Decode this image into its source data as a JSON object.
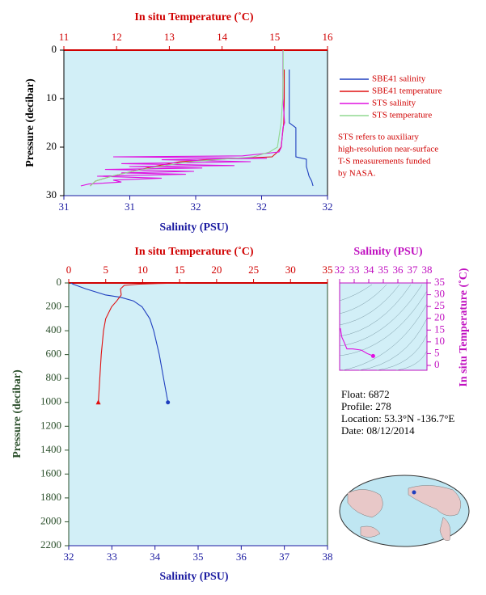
{
  "chart_data": [
    {
      "type": "line",
      "x2label": "In situ Temperature (˚C)",
      "xlabel": "Salinity (PSU)",
      "ylabel": "Pressure (decibar)",
      "xlim": [
        31,
        32
      ],
      "xticks": [
        31,
        {
          "value": 31.25,
          "label": "31"
        },
        {
          "value": 31.5,
          "label": "32"
        },
        {
          "value": 31.75,
          "label": "32"
        },
        32
      ],
      "x2lim": [
        11,
        16
      ],
      "x2ticks": [
        11,
        12,
        13,
        14,
        15,
        16
      ],
      "ylim": [
        0,
        30
      ],
      "yticks": [
        0,
        10,
        20,
        30
      ],
      "y_reversed": true,
      "series": [
        {
          "name": "SBE41 salinity",
          "color": "#1f3fbf",
          "axis": "x",
          "x": [
            31.855,
            31.855,
            31.855,
            31.88,
            31.88,
            31.88,
            31.92,
            31.92,
            31.925,
            31.93,
            31.94,
            31.945
          ],
          "y": [
            4,
            10,
            15,
            16,
            20,
            22,
            22.5,
            24,
            25,
            26,
            27,
            28
          ]
        },
        {
          "name": "SBE41 temperature",
          "color": "#e01010",
          "axis": "x2",
          "x": [
            15.18,
            15.18,
            15.17,
            15.12,
            15.05,
            14.95,
            13.9,
            13.2,
            12.7,
            12.3,
            11.9,
            11.6,
            11.5
          ],
          "y": [
            4,
            10,
            15,
            20,
            21,
            22,
            22.5,
            23,
            24,
            25,
            26,
            27,
            28
          ]
        },
        {
          "name": "STS salinity",
          "color": "#e010e0",
          "axis": "x",
          "x": [
            31.831,
            31.831,
            31.831,
            31.837,
            31.831,
            31.825,
            31.816,
            31.678,
            31.187,
            31.77,
            31.371,
            31.709,
            31.218,
            31.647,
            31.248,
            31.525,
            31.156,
            31.494,
            31.218,
            31.463,
            31.126,
            31.371,
            31.187,
            31.218,
            31.095,
            31.064
          ],
          "y": [
            0,
            5,
            10,
            15,
            16,
            20,
            21,
            21.8,
            22,
            22.3,
            22.6,
            23,
            23.4,
            23.8,
            24,
            24.3,
            24.6,
            25,
            25.3,
            25.6,
            26,
            26.4,
            26.8,
            27.2,
            27.6,
            28
          ]
        },
        {
          "name": "STS temperature",
          "color": "#90d890",
          "axis": "x2",
          "x": [
            15.16,
            15.16,
            15.15,
            15.12,
            15.05,
            14.9,
            14.6,
            13.4,
            12.8,
            12.3,
            11.9,
            11.6,
            11.5
          ],
          "y": [
            0,
            5,
            10,
            15,
            20,
            21,
            22,
            23,
            24,
            25,
            26,
            27,
            28
          ]
        }
      ],
      "annotation": [
        "STS refers to auxiliary",
        "high-resolution near-surface",
        "T-S measurements funded",
        "by NASA."
      ]
    },
    {
      "type": "line",
      "x2label": "In situ Temperature (˚C)",
      "xlabel": "Salinity (PSU)",
      "ylabel": "Pressure (decibar)",
      "xlim": [
        32,
        38
      ],
      "xticks": [
        32,
        33,
        34,
        35,
        36,
        37,
        38
      ],
      "x2lim": [
        0,
        35
      ],
      "x2ticks": [
        0,
        5,
        10,
        15,
        20,
        25,
        30,
        35
      ],
      "ylim": [
        0,
        2200
      ],
      "yticks": [
        0,
        200,
        400,
        600,
        800,
        1000,
        1200,
        1400,
        1600,
        1800,
        2000,
        2200
      ],
      "y_reversed": true,
      "series": [
        {
          "color": "#1f3fbf",
          "axis": "x",
          "end_marker": "circle",
          "x": [
            32.05,
            32.1,
            32.4,
            32.85,
            33.2,
            33.5,
            33.7,
            33.88,
            33.97,
            34.1,
            34.2,
            34.3
          ],
          "y": [
            0,
            10,
            50,
            100,
            120,
            150,
            200,
            300,
            400,
            600,
            800,
            1000
          ]
        },
        {
          "color": "#e01010",
          "axis": "x2",
          "end_marker": "triangle",
          "x": [
            15.8,
            12,
            9.5,
            7.5,
            7.0,
            7.1,
            6.5,
            5.8,
            5.0,
            4.7,
            4.4,
            4.2,
            4.0
          ],
          "y": [
            0,
            5,
            10,
            20,
            50,
            100,
            150,
            200,
            300,
            400,
            600,
            800,
            1000
          ]
        }
      ]
    },
    {
      "type": "line",
      "xlabel": "Salinity (PSU)",
      "ylabel": "In situ Temperature (˚C)",
      "xlim": [
        32,
        38
      ],
      "xticks": [
        32,
        33,
        34,
        35,
        36,
        37,
        38
      ],
      "ylim": [
        0,
        35
      ],
      "yticks": [
        0,
        5,
        10,
        15,
        20,
        25,
        30,
        35
      ],
      "series": [
        {
          "color": "#e010e0",
          "axis": "x",
          "end_marker": "circle",
          "x": [
            32.05,
            32.15,
            32.3,
            32.5,
            32.9,
            33.5,
            33.9,
            34.3
          ],
          "y": [
            15.8,
            12,
            10,
            7,
            7.0,
            6.5,
            5.0,
            4.0
          ]
        }
      ]
    }
  ],
  "float_info": [
    "Float:  6872",
    "Profile:  278",
    "Location:  53.3°N  -136.7°E",
    "Date:  08/12/2014"
  ]
}
